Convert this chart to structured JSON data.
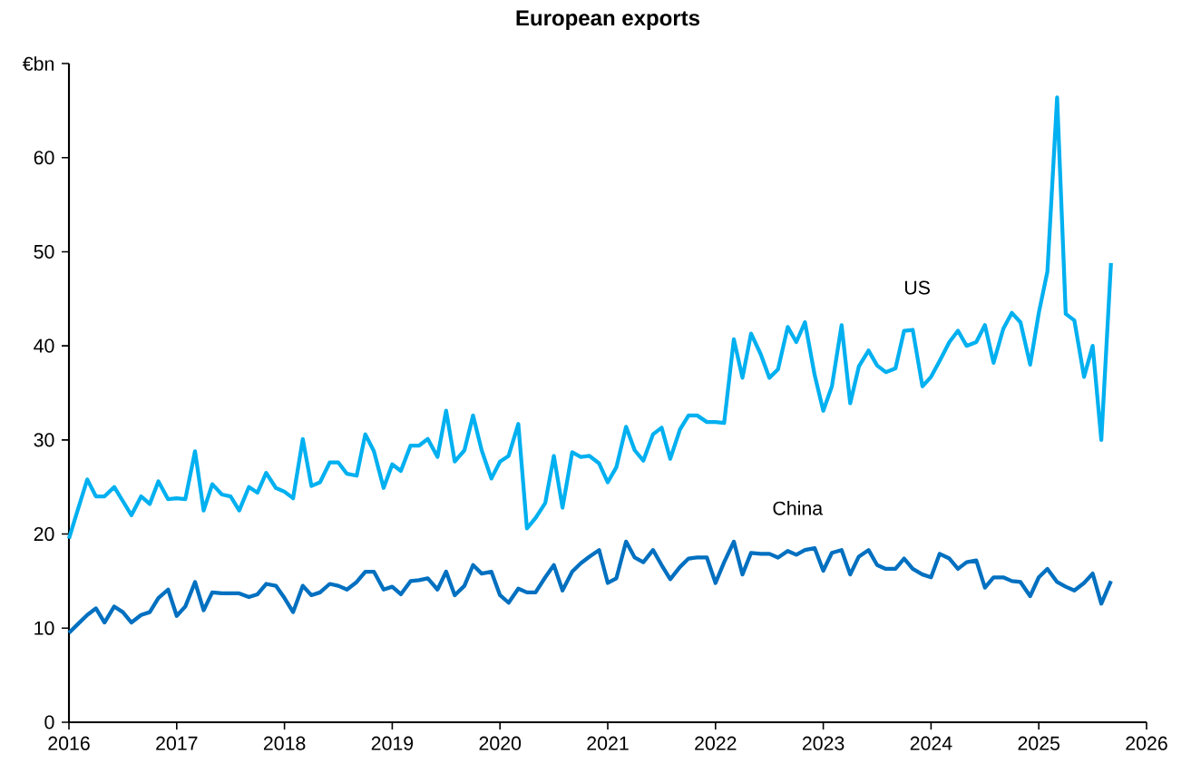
{
  "chart_data": {
    "type": "line",
    "title": "European exports",
    "x": [
      "2016-01",
      "2016-02",
      "2016-03",
      "2016-04",
      "2016-05",
      "2016-06",
      "2016-07",
      "2016-08",
      "2016-09",
      "2016-10",
      "2016-11",
      "2016-12",
      "2017-01",
      "2017-02",
      "2017-03",
      "2017-04",
      "2017-05",
      "2017-06",
      "2017-07",
      "2017-08",
      "2017-09",
      "2017-10",
      "2017-11",
      "2017-12",
      "2018-01",
      "2018-02",
      "2018-03",
      "2018-04",
      "2018-05",
      "2018-06",
      "2018-07",
      "2018-08",
      "2018-09",
      "2018-10",
      "2018-11",
      "2018-12",
      "2019-01",
      "2019-02",
      "2019-03",
      "2019-04",
      "2019-05",
      "2019-06",
      "2019-07",
      "2019-08",
      "2019-09",
      "2019-10",
      "2019-11",
      "2019-12",
      "2020-01",
      "2020-02",
      "2020-03",
      "2020-04",
      "2020-05",
      "2020-06",
      "2020-07",
      "2020-08",
      "2020-09",
      "2020-10",
      "2020-11",
      "2020-12",
      "2021-01",
      "2021-02",
      "2021-03",
      "2021-04",
      "2021-05",
      "2021-06",
      "2021-07",
      "2021-08",
      "2021-09",
      "2021-10",
      "2021-11",
      "2021-12",
      "2022-01",
      "2022-02",
      "2022-03",
      "2022-04",
      "2022-05",
      "2022-06",
      "2022-07",
      "2022-08",
      "2022-09",
      "2022-10",
      "2022-11",
      "2022-12",
      "2023-01",
      "2023-02",
      "2023-03",
      "2023-04",
      "2023-05",
      "2023-06",
      "2023-07",
      "2023-08",
      "2023-09",
      "2023-10",
      "2023-11",
      "2023-12",
      "2024-01",
      "2024-02",
      "2024-03",
      "2024-04",
      "2024-05",
      "2024-06",
      "2024-07",
      "2024-08",
      "2024-09",
      "2024-10",
      "2024-11",
      "2024-12",
      "2025-01",
      "2025-02",
      "2025-03",
      "2025-04",
      "2025-05",
      "2025-06",
      "2025-07",
      "2025-08",
      "2025-09"
    ],
    "series": [
      {
        "name": "US",
        "color": "#00b0f0",
        "values": [
          19.5,
          22.5,
          25.8,
          24,
          24,
          25,
          23.5,
          22,
          24,
          23.2,
          25.6,
          23.7,
          23.8,
          23.7,
          28.8,
          22.5,
          25.3,
          24.2,
          24,
          22.5,
          25,
          24.4,
          26.5,
          24.9,
          24.5,
          23.8,
          30.1,
          25.1,
          25.5,
          27.6,
          27.6,
          26.4,
          26.2,
          30.6,
          28.8,
          24.9,
          27.4,
          26.7,
          29.4,
          29.4,
          30.1,
          28.2,
          33.1,
          27.7,
          28.9,
          32.6,
          28.9,
          25.9,
          27.7,
          28.3,
          31.7,
          20.6,
          21.7,
          23.3,
          28.3,
          22.8,
          28.7,
          28.2,
          28.3,
          27.5,
          25.5,
          27.1,
          31.4,
          28.9,
          27.8,
          30.6,
          31.3,
          28,
          31.1,
          32.6,
          32.6,
          31.9,
          31.9,
          31.8,
          40.7,
          36.6,
          41.3,
          39.1,
          36.6,
          37.5,
          42,
          40.4,
          42.5,
          36.9,
          33.1,
          35.7,
          42.2,
          33.9,
          37.8,
          39.5,
          37.9,
          37.2,
          37.6,
          41.6,
          41.7,
          35.7,
          36.7,
          38.4,
          40.4,
          41.6,
          40,
          40.4,
          42.2,
          38.2,
          41.8,
          43.5,
          42.5,
          38,
          43.5,
          47.9,
          66.4,
          43.4,
          42.7,
          36.7,
          40,
          30,
          48.8
        ]
      },
      {
        "name": "China",
        "color": "#0070c0",
        "values": [
          9.5,
          10.4,
          11.4,
          12.1,
          10.6,
          12.3,
          11.7,
          10.6,
          11.4,
          11.7,
          13.2,
          14.1,
          11.3,
          12.3,
          14.9,
          11.9,
          13.8,
          13.7,
          13.7,
          13.7,
          13.3,
          13.6,
          14.7,
          14.5,
          13.2,
          11.7,
          14.5,
          13.5,
          13.8,
          14.7,
          14.5,
          14.1,
          14.9,
          16,
          16,
          14.1,
          14.4,
          13.6,
          15,
          15.1,
          15.3,
          14.1,
          16,
          13.5,
          14.5,
          16.7,
          15.8,
          16,
          13.5,
          12.7,
          14.2,
          13.8,
          13.8,
          15.4,
          16.7,
          14,
          16,
          16.9,
          17.6,
          18.3,
          14.8,
          15.3,
          19.2,
          17.5,
          17,
          18.3,
          16.7,
          15.2,
          16.5,
          17.4,
          17.5,
          17.5,
          14.8,
          17,
          19.2,
          15.7,
          18,
          17.9,
          17.9,
          17.5,
          18.2,
          17.8,
          18.3,
          18.5,
          16.1,
          18,
          18.3,
          15.7,
          17.6,
          18.3,
          16.7,
          16.3,
          16.3,
          17.4,
          16.3,
          15.7,
          15.4,
          17.9,
          17.4,
          16.3,
          17,
          17.2,
          14.3,
          15.4,
          15.4,
          15,
          14.9,
          13.4,
          15.4,
          16.3,
          14.9,
          14.4,
          14,
          14.8,
          15.8,
          12.6,
          15
        ]
      }
    ],
    "xlim": [
      "2016",
      "2026"
    ],
    "xticks": [
      "2016",
      "2017",
      "2018",
      "2019",
      "2020",
      "2021",
      "2022",
      "2023",
      "2024",
      "2025",
      "2026"
    ],
    "ylim": [
      0,
      70
    ],
    "yticks": [
      0,
      10,
      20,
      30,
      40,
      50,
      60,
      {
        "value": 70,
        "label": "€bn"
      }
    ],
    "grid": false,
    "legend": false,
    "marker": "none",
    "line_style": "solid"
  }
}
